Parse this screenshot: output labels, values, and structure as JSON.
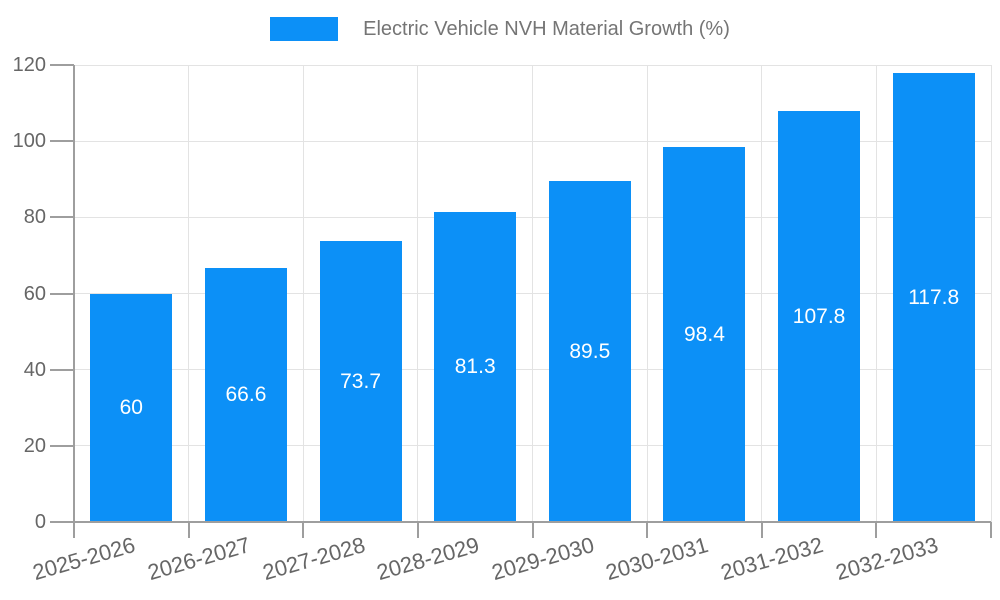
{
  "legend": {
    "label": "Electric Vehicle NVH Material Growth (%)"
  },
  "chart_data": {
    "type": "bar",
    "title": "Electric Vehicle NVH Material Growth (%)",
    "series_name": "Electric Vehicle NVH Material Growth (%)",
    "categories": [
      "2025-2026",
      "2026-2027",
      "2027-2028",
      "2028-2029",
      "2029-2030",
      "2030-2031",
      "2031-2032",
      "2032-2033"
    ],
    "values": [
      60,
      66.6,
      73.7,
      81.3,
      89.5,
      98.4,
      107.8,
      117.8
    ],
    "value_labels": [
      "60",
      "66.6",
      "73.7",
      "81.3",
      "89.5",
      "98.4",
      "107.8",
      "117.8"
    ],
    "xlabel": "",
    "ylabel": "",
    "ylim": [
      0,
      120
    ],
    "yticks": [
      0,
      20,
      40,
      60,
      80,
      100,
      120
    ],
    "grid": true,
    "legend_position": "top-center",
    "x_tick_rotation_deg": -16,
    "colors": {
      "bar": "#0c90f7",
      "grid": "#e3e3e3",
      "axis": "#9e9e9e",
      "tick_text": "#666666",
      "legend_text": "#757575",
      "value_label": "#ffffff",
      "background": "#ffffff"
    }
  }
}
